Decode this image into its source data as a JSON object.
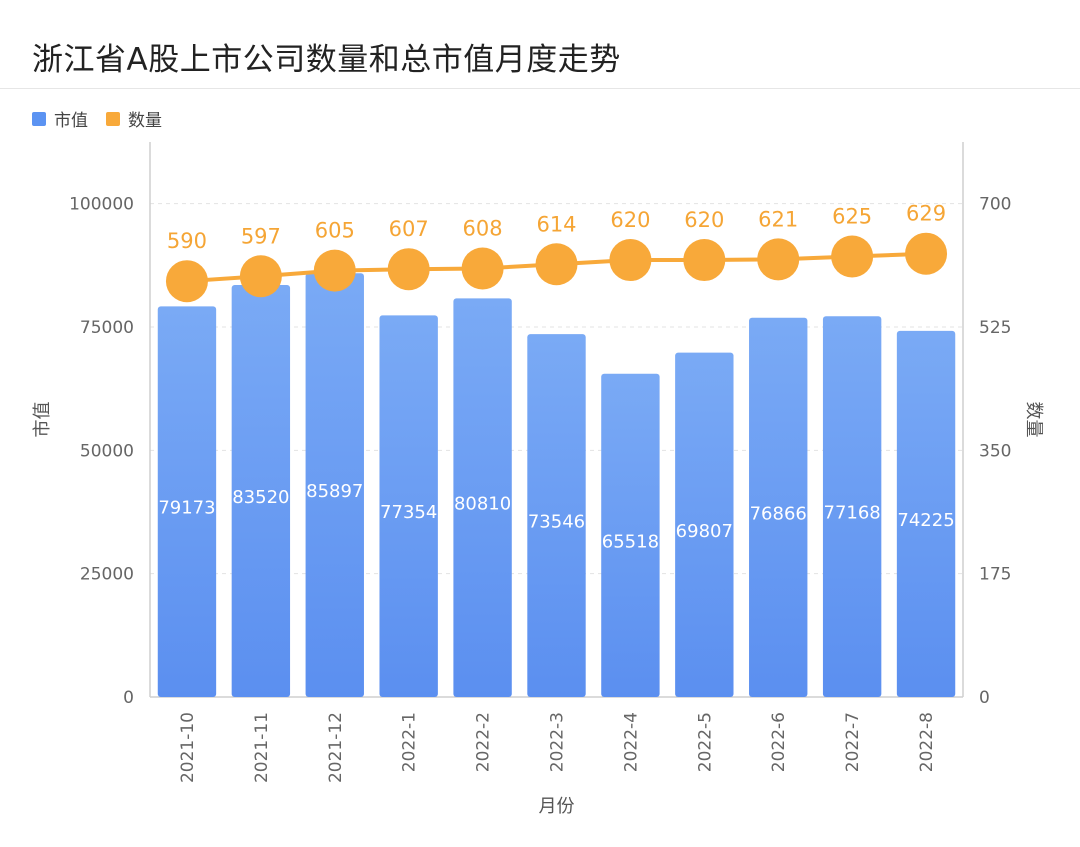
{
  "title": "浙江省A股上市公司数量和总市值月度走势",
  "legend": [
    {
      "label": "市值",
      "color": "#5b93f2"
    },
    {
      "label": "数量",
      "color": "#f8a93a"
    }
  ],
  "chart_data": {
    "type": "bar",
    "categories": [
      "2021-10",
      "2021-11",
      "2021-12",
      "2022-1",
      "2022-2",
      "2022-3",
      "2022-4",
      "2022-5",
      "2022-6",
      "2022-7",
      "2022-8"
    ],
    "series": [
      {
        "name": "市值",
        "type": "bar",
        "axis": "left",
        "values": [
          79173,
          83520,
          85897,
          77354,
          80810,
          73546,
          65518,
          69807,
          76866,
          77168,
          74225
        ]
      },
      {
        "name": "数量",
        "type": "line",
        "axis": "right",
        "values": [
          590,
          597,
          605,
          607,
          608,
          614,
          620,
          620,
          621,
          625,
          629
        ]
      }
    ],
    "xlabel": "月份",
    "ylabel": "市值",
    "y2label": "数量",
    "ylim": [
      0,
      112500
    ],
    "y2lim": [
      0,
      787.5
    ],
    "yticks": [
      0,
      25000,
      50000,
      75000,
      100000
    ],
    "y2ticks": [
      0,
      175,
      350,
      525,
      700
    ],
    "grid": true,
    "legend_position": "top-left"
  }
}
